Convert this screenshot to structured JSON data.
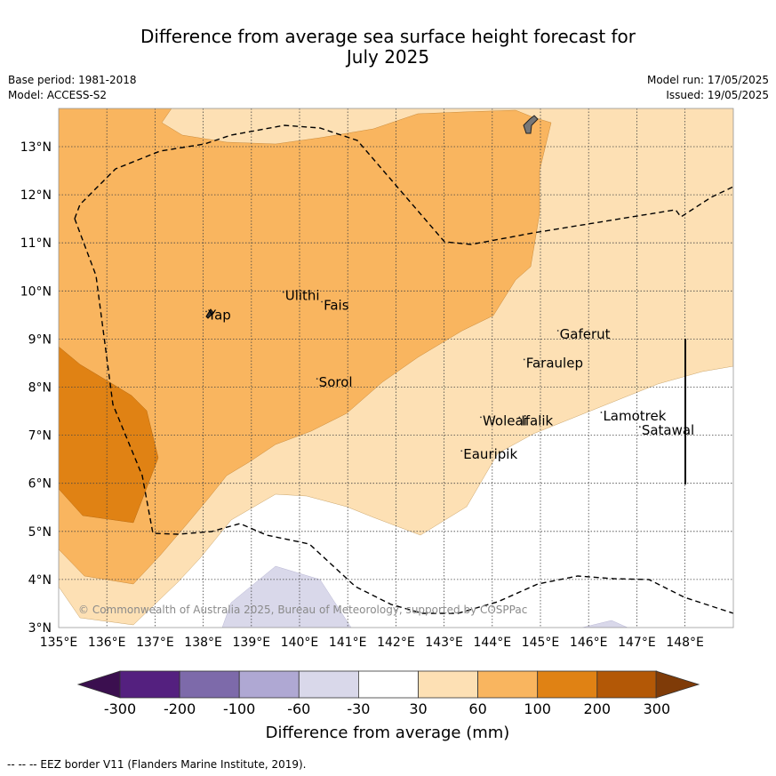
{
  "header": {
    "title_line1": "Difference from average sea surface height forecast for",
    "title_line2": "July 2025",
    "base_period": "Base period: 1981-2018",
    "model": "Model: ACCESS-S2",
    "model_run": "Model run: 17/05/2025",
    "issued": "Issued: 19/05/2025"
  },
  "map": {
    "lon_range": [
      135,
      149
    ],
    "lat_range": [
      3,
      13.8
    ],
    "lon_ticks": [
      "135°E",
      "136°E",
      "137°E",
      "138°E",
      "139°E",
      "140°E",
      "141°E",
      "142°E",
      "143°E",
      "144°E",
      "145°E",
      "146°E",
      "147°E",
      "148°E"
    ],
    "lat_ticks": [
      "3°N",
      "4°N",
      "5°N",
      "6°N",
      "7°N",
      "8°N",
      "9°N",
      "10°N",
      "11°N",
      "12°N",
      "13°N"
    ],
    "copyright": "© Commonwealth of Australia 2025, Bureau of Meteorology, supported by COSPPac",
    "places": [
      {
        "name": "Yap",
        "lon": 138.1,
        "lat": 9.5
      },
      {
        "name": "Ulithi",
        "lon": 139.7,
        "lat": 9.9
      },
      {
        "name": "Fais",
        "lon": 140.5,
        "lat": 9.7
      },
      {
        "name": "Sorol",
        "lon": 140.4,
        "lat": 8.1
      },
      {
        "name": "Gaferut",
        "lon": 145.4,
        "lat": 9.1
      },
      {
        "name": "Faraulep",
        "lon": 144.7,
        "lat": 8.5
      },
      {
        "name": "Woleai",
        "lon": 143.8,
        "lat": 7.3
      },
      {
        "name": "Ifalik",
        "lon": 144.6,
        "lat": 7.3
      },
      {
        "name": "Lamotrek",
        "lon": 146.3,
        "lat": 7.4
      },
      {
        "name": "Satawal",
        "lon": 147.1,
        "lat": 7.1
      },
      {
        "name": "Eauripik",
        "lon": 143.4,
        "lat": 6.6
      }
    ]
  },
  "legend": {
    "labels": [
      "-300",
      "-200",
      "-100",
      "-60",
      "-30",
      "30",
      "60",
      "100",
      "200",
      "300"
    ],
    "colors": [
      "#3b0f4f",
      "#54207f",
      "#7d6aaa",
      "#afa8d3",
      "#d9d8ea",
      "#ffffff",
      "#fde0b4",
      "#f9b55f",
      "#e08214",
      "#b35806",
      "#7f3b08"
    ],
    "title": "Difference from average (mm)"
  },
  "footer": {
    "eez_note": "-- -- -- EEZ border V11 (Flanders Marine Institute, 2019)."
  }
}
